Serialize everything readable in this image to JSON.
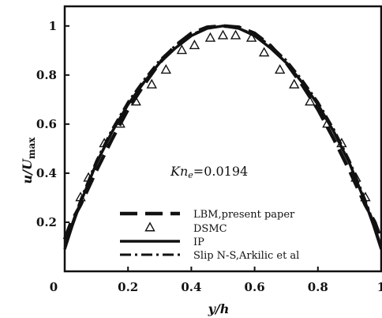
{
  "chart_data": {
    "type": "line",
    "xlabel": "y/h",
    "ylabel_main": "u/U",
    "ylabel_sub": "max",
    "xlim": [
      0,
      1
    ],
    "ylim": [
      0,
      1.08
    ],
    "x_ticks": [
      "0",
      "0.2",
      "0.4",
      "0.6",
      "0.8",
      "1"
    ],
    "x_tick_values": [
      0,
      0.2,
      0.4,
      0.6,
      0.8,
      1
    ],
    "y_ticks": [
      "0.2",
      "0.4",
      "0.6",
      "0.8",
      "1"
    ],
    "y_tick_values": [
      0.2,
      0.4,
      0.6,
      0.8,
      1
    ],
    "annotation": {
      "main": "Kn",
      "sub": "e",
      "suffix": "=0.0194"
    },
    "series": [
      {
        "name": "LBM,present paper",
        "style": "long-dash",
        "x": [
          0,
          0.02,
          0.05,
          0.1,
          0.15,
          0.2,
          0.25,
          0.3,
          0.35,
          0.4,
          0.45,
          0.5,
          0.55,
          0.6,
          0.65,
          0.7,
          0.75,
          0.8,
          0.85,
          0.9,
          0.95,
          0.98,
          1
        ],
        "y": [
          0.13,
          0.2,
          0.27,
          0.41,
          0.54,
          0.66,
          0.76,
          0.85,
          0.92,
          0.97,
          0.995,
          1.0,
          0.995,
          0.97,
          0.92,
          0.85,
          0.76,
          0.66,
          0.54,
          0.41,
          0.27,
          0.2,
          0.13
        ]
      },
      {
        "name": "DSMC",
        "style": "triangle",
        "x": [
          0.05,
          0.075,
          0.125,
          0.175,
          0.225,
          0.275,
          0.32,
          0.37,
          0.41,
          0.46,
          0.5,
          0.54,
          0.59,
          0.63,
          0.68,
          0.725,
          0.775,
          0.83,
          0.875,
          0.92,
          0.95
        ],
        "y": [
          0.3,
          0.38,
          0.52,
          0.6,
          0.69,
          0.76,
          0.82,
          0.9,
          0.92,
          0.95,
          0.96,
          0.96,
          0.95,
          0.89,
          0.82,
          0.76,
          0.69,
          0.6,
          0.52,
          0.38,
          0.3
        ]
      },
      {
        "name": "IP",
        "style": "solid",
        "x": [
          0,
          0.025,
          0.05,
          0.075,
          0.1,
          0.15,
          0.2,
          0.25,
          0.3,
          0.35,
          0.4,
          0.45,
          0.5,
          0.55,
          0.6,
          0.65,
          0.7,
          0.75,
          0.8,
          0.85,
          0.9,
          0.925,
          0.95,
          0.975,
          1
        ],
        "y": [
          0.09,
          0.19,
          0.28,
          0.36,
          0.44,
          0.57,
          0.68,
          0.77,
          0.85,
          0.91,
          0.96,
          0.99,
          1.0,
          0.99,
          0.96,
          0.91,
          0.85,
          0.77,
          0.68,
          0.57,
          0.44,
          0.36,
          0.28,
          0.19,
          0.09
        ]
      },
      {
        "name": "Slip N-S,Arkilic et al",
        "style": "dash-dot",
        "x": [
          0,
          0.025,
          0.05,
          0.075,
          0.1,
          0.15,
          0.2,
          0.25,
          0.3,
          0.35,
          0.4,
          0.45,
          0.5,
          0.55,
          0.6,
          0.65,
          0.7,
          0.75,
          0.8,
          0.85,
          0.9,
          0.925,
          0.95,
          0.975,
          1
        ],
        "y": [
          0.1,
          0.2,
          0.29,
          0.37,
          0.45,
          0.58,
          0.69,
          0.78,
          0.86,
          0.92,
          0.965,
          0.99,
          1.0,
          0.99,
          0.965,
          0.92,
          0.86,
          0.78,
          0.69,
          0.58,
          0.45,
          0.37,
          0.29,
          0.2,
          0.1
        ]
      }
    ]
  }
}
